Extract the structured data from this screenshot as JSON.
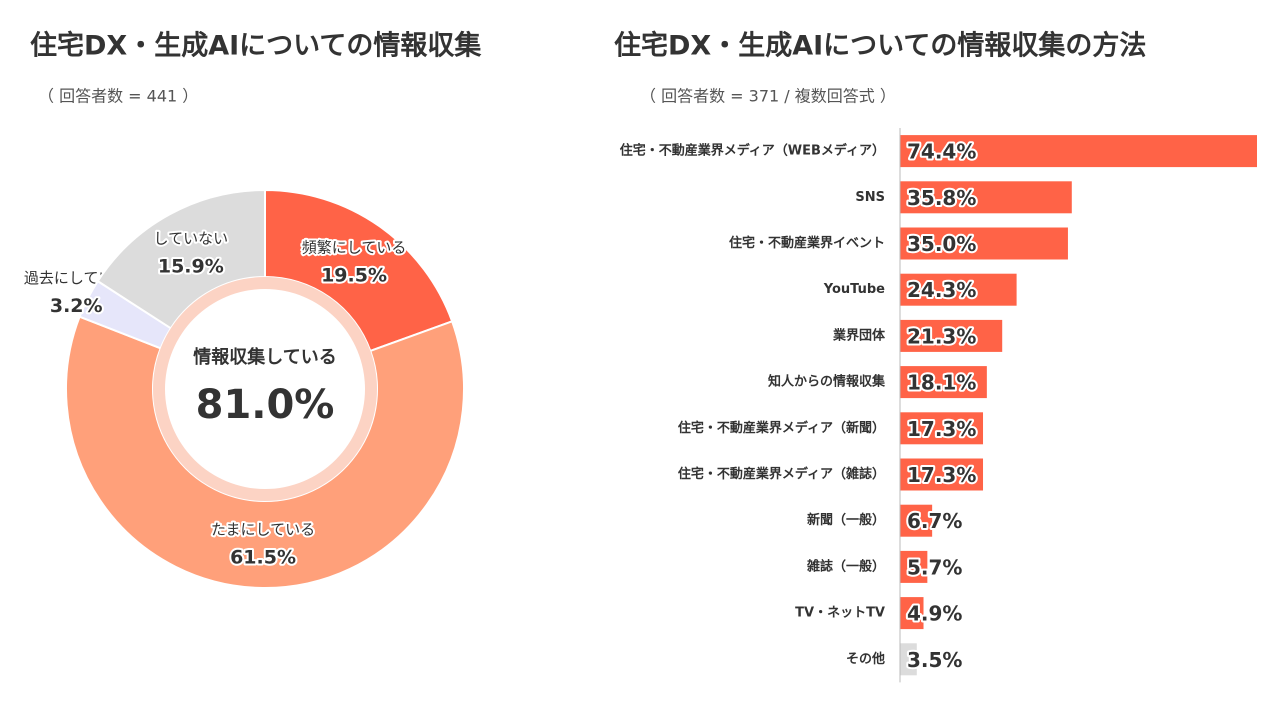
{
  "chart_data": [
    {
      "type": "donut",
      "title": "住宅DX・生成AIについての情報収集",
      "subtitle": "（ 回答者数 = 441 ）",
      "categories": [
        "頻繁にしている",
        "たまにしている",
        "過去にしていた",
        "していない"
      ],
      "values": [
        19.5,
        61.5,
        3.2,
        15.9
      ],
      "value_labels": [
        "19.5%",
        "61.5%",
        "3.2%",
        "15.9%"
      ],
      "colors": [
        "#ff6347",
        "#ffa07a",
        "#e6e6fa",
        "#dcdcdc"
      ],
      "center": {
        "text": "情報収集している",
        "value": 81.0,
        "label": "81.0%"
      }
    },
    {
      "type": "barh",
      "title": "住宅DX・生成AIについての情報収集の方法",
      "subtitle": "（ 回答者数 = 371 / 複数回答式 ）",
      "categories": [
        "住宅・不動産業界メディア（WEBメディア）",
        "SNS",
        "住宅・不動産業界イベント",
        "YouTube",
        "業界団体",
        "知人からの情報収集",
        "住宅・不動産業界メディア（新聞）",
        "住宅・不動産業界メディア（雑誌）",
        "新聞（一般）",
        "雑誌（一般）",
        "TV・ネットTV",
        "その他"
      ],
      "values": [
        74.4,
        35.8,
        35.0,
        24.3,
        21.3,
        18.1,
        17.3,
        17.3,
        6.7,
        5.7,
        4.9,
        3.5
      ],
      "value_labels": [
        "74.4%",
        "35.8%",
        "35.0%",
        "24.3%",
        "21.3%",
        "18.1%",
        "17.3%",
        "17.3%",
        "6.7%",
        "5.7%",
        "4.9%",
        "3.5%"
      ],
      "colors": [
        "#ff6347",
        "#ff6347",
        "#ff6347",
        "#ff6347",
        "#ff6347",
        "#ff6347",
        "#ff6347",
        "#ff6347",
        "#ff6347",
        "#ff6347",
        "#ff6347",
        "#dcdcdc"
      ],
      "xlim": [
        0,
        74.4
      ]
    }
  ]
}
